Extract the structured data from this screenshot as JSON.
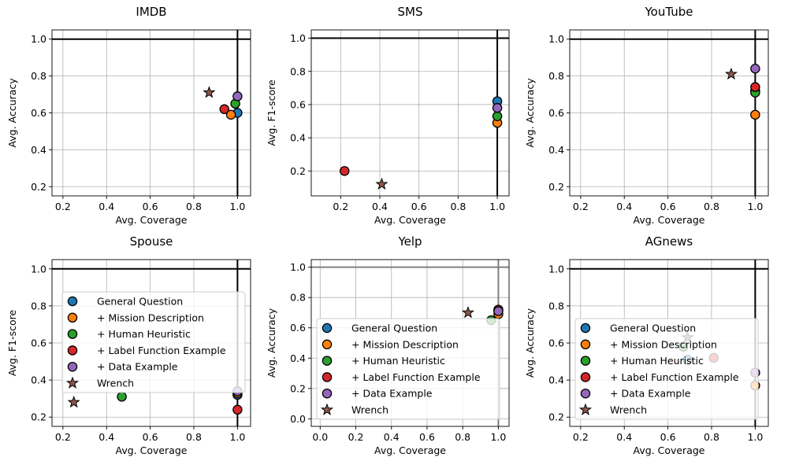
{
  "legend_entries": [
    "General Question",
    "+ Mission Description",
    "+ Human Heuristic",
    "+ Label Function Example",
    "+ Data Example",
    "Wrench"
  ],
  "colors": {
    "General Question": "#1f77b4",
    "+ Mission Description": "#ff7f0e",
    "+ Human Heuristic": "#2ca02c",
    "+ Label Function Example": "#d62728",
    "+ Data Example": "#9467bd",
    "Wrench": "#8c564b"
  },
  "chart_data": [
    {
      "type": "scatter",
      "title": "IMDB",
      "xlabel": "Avg. Coverage",
      "ylabel": "Avg. Accuracy",
      "xlim": [
        0.15,
        1.06
      ],
      "ylim": [
        0.15,
        1.05
      ],
      "xticks": [
        "0.2",
        "0.4",
        "0.6",
        "0.8",
        "1.0"
      ],
      "yticks": [
        "0.2",
        "0.4",
        "0.6",
        "0.8",
        "1.0"
      ],
      "legend": false,
      "series": [
        {
          "name": "General Question",
          "x": [
            1.0
          ],
          "y": [
            0.6
          ]
        },
        {
          "name": "+ Mission Description",
          "x": [
            0.97
          ],
          "y": [
            0.59
          ]
        },
        {
          "name": "+ Human Heuristic",
          "x": [
            0.99
          ],
          "y": [
            0.65
          ]
        },
        {
          "name": "+ Label Function Example",
          "x": [
            0.94
          ],
          "y": [
            0.62
          ]
        },
        {
          "name": "+ Data Example",
          "x": [
            1.0
          ],
          "y": [
            0.69
          ]
        },
        {
          "name": "Wrench",
          "x": [
            0.87
          ],
          "y": [
            0.71
          ]
        }
      ]
    },
    {
      "type": "scatter",
      "title": "SMS",
      "xlabel": "Avg. Coverage",
      "ylabel": "Avg. F1-score",
      "xlim": [
        0.05,
        1.06
      ],
      "ylim": [
        0.05,
        1.05
      ],
      "xticks": [
        "0.2",
        "0.4",
        "0.6",
        "0.8",
        "1.0"
      ],
      "yticks": [
        "0.2",
        "0.4",
        "0.6",
        "0.8",
        "1.0"
      ],
      "legend": false,
      "series": [
        {
          "name": "General Question",
          "x": [
            1.0
          ],
          "y": [
            0.62
          ]
        },
        {
          "name": "+ Mission Description",
          "x": [
            1.0
          ],
          "y": [
            0.49
          ]
        },
        {
          "name": "+ Human Heuristic",
          "x": [
            1.0
          ],
          "y": [
            0.53
          ]
        },
        {
          "name": "+ Label Function Example",
          "x": [
            0.22
          ],
          "y": [
            0.2
          ]
        },
        {
          "name": "+ Data Example",
          "x": [
            1.0
          ],
          "y": [
            0.58
          ]
        },
        {
          "name": "Wrench",
          "x": [
            0.41
          ],
          "y": [
            0.12
          ]
        }
      ]
    },
    {
      "type": "scatter",
      "title": "YouTube",
      "xlabel": "Avg. Coverage",
      "ylabel": "Avg. Accuracy",
      "xlim": [
        0.15,
        1.06
      ],
      "ylim": [
        0.15,
        1.05
      ],
      "xticks": [
        "0.2",
        "0.4",
        "0.6",
        "0.8",
        "1.0"
      ],
      "yticks": [
        "0.2",
        "0.4",
        "0.6",
        "0.8",
        "1.0"
      ],
      "legend": false,
      "series": [
        {
          "name": "General Question",
          "x": [
            1.0
          ],
          "y": [
            0.72
          ]
        },
        {
          "name": "+ Mission Description",
          "x": [
            1.0
          ],
          "y": [
            0.59
          ]
        },
        {
          "name": "+ Human Heuristic",
          "x": [
            1.0
          ],
          "y": [
            0.71
          ]
        },
        {
          "name": "+ Label Function Example",
          "x": [
            1.0
          ],
          "y": [
            0.74
          ]
        },
        {
          "name": "+ Data Example",
          "x": [
            1.0
          ],
          "y": [
            0.84
          ]
        },
        {
          "name": "Wrench",
          "x": [
            0.89
          ],
          "y": [
            0.81
          ]
        }
      ]
    },
    {
      "type": "scatter",
      "title": "Spouse",
      "xlabel": "Avg. Coverage",
      "ylabel": "Avg. F1-score",
      "xlim": [
        0.15,
        1.06
      ],
      "ylim": [
        0.15,
        1.05
      ],
      "xticks": [
        "0.2",
        "0.4",
        "0.6",
        "0.8",
        "1.0"
      ],
      "yticks": [
        "0.2",
        "0.4",
        "0.6",
        "0.8",
        "1.0"
      ],
      "legend": true,
      "series": [
        {
          "name": "General Question",
          "x": [
            1.0
          ],
          "y": [
            0.32
          ]
        },
        {
          "name": "+ Mission Description",
          "x": [
            1.0
          ],
          "y": [
            0.33
          ]
        },
        {
          "name": "+ Human Heuristic",
          "x": [
            0.47
          ],
          "y": [
            0.31
          ]
        },
        {
          "name": "+ Label Function Example",
          "x": [
            1.0
          ],
          "y": [
            0.24
          ]
        },
        {
          "name": "+ Data Example",
          "x": [
            1.0
          ],
          "y": [
            0.34
          ]
        },
        {
          "name": "Wrench",
          "x": [
            0.25
          ],
          "y": [
            0.28
          ]
        }
      ]
    },
    {
      "type": "scatter",
      "title": "Yelp",
      "xlabel": "Avg. Coverage",
      "ylabel": "Avg. Accuracy",
      "xlim": [
        -0.05,
        1.06
      ],
      "ylim": [
        -0.05,
        1.05
      ],
      "xticks": [
        "0.0",
        "0.2",
        "0.4",
        "0.6",
        "0.8",
        "1.0"
      ],
      "yticks": [
        "0.0",
        "0.2",
        "0.4",
        "0.6",
        "0.8",
        "1.0"
      ],
      "legend": true,
      "series": [
        {
          "name": "General Question",
          "x": [
            1.0
          ],
          "y": [
            0.71
          ]
        },
        {
          "name": "+ Mission Description",
          "x": [
            1.0
          ],
          "y": [
            0.69
          ]
        },
        {
          "name": "+ Human Heuristic",
          "x": [
            0.96
          ],
          "y": [
            0.65
          ]
        },
        {
          "name": "+ Label Function Example",
          "x": [
            1.0
          ],
          "y": [
            0.72
          ]
        },
        {
          "name": "+ Data Example",
          "x": [
            1.0
          ],
          "y": [
            0.71
          ]
        },
        {
          "name": "Wrench",
          "x": [
            0.83
          ],
          "y": [
            0.7
          ]
        }
      ]
    },
    {
      "type": "scatter",
      "title": "AGnews",
      "xlabel": "Avg. Coverage",
      "ylabel": "Avg. Accuracy",
      "xlim": [
        0.15,
        1.06
      ],
      "ylim": [
        0.15,
        1.05
      ],
      "xticks": [
        "0.2",
        "0.4",
        "0.6",
        "0.8",
        "1.0"
      ],
      "yticks": [
        "0.2",
        "0.4",
        "0.6",
        "0.8",
        "1.0"
      ],
      "legend": true,
      "series": [
        {
          "name": "General Question",
          "x": [
            0.69
          ],
          "y": [
            0.51
          ]
        },
        {
          "name": "+ Mission Description",
          "x": [
            1.0
          ],
          "y": [
            0.37
          ]
        },
        {
          "name": "+ Human Heuristic",
          "x": [
            0.67
          ],
          "y": [
            0.58
          ]
        },
        {
          "name": "+ Label Function Example",
          "x": [
            0.81
          ],
          "y": [
            0.52
          ]
        },
        {
          "name": "+ Data Example",
          "x": [
            1.0
          ],
          "y": [
            0.44
          ]
        },
        {
          "name": "Wrench",
          "x": [
            0.69
          ],
          "y": [
            0.63
          ]
        }
      ]
    }
  ]
}
